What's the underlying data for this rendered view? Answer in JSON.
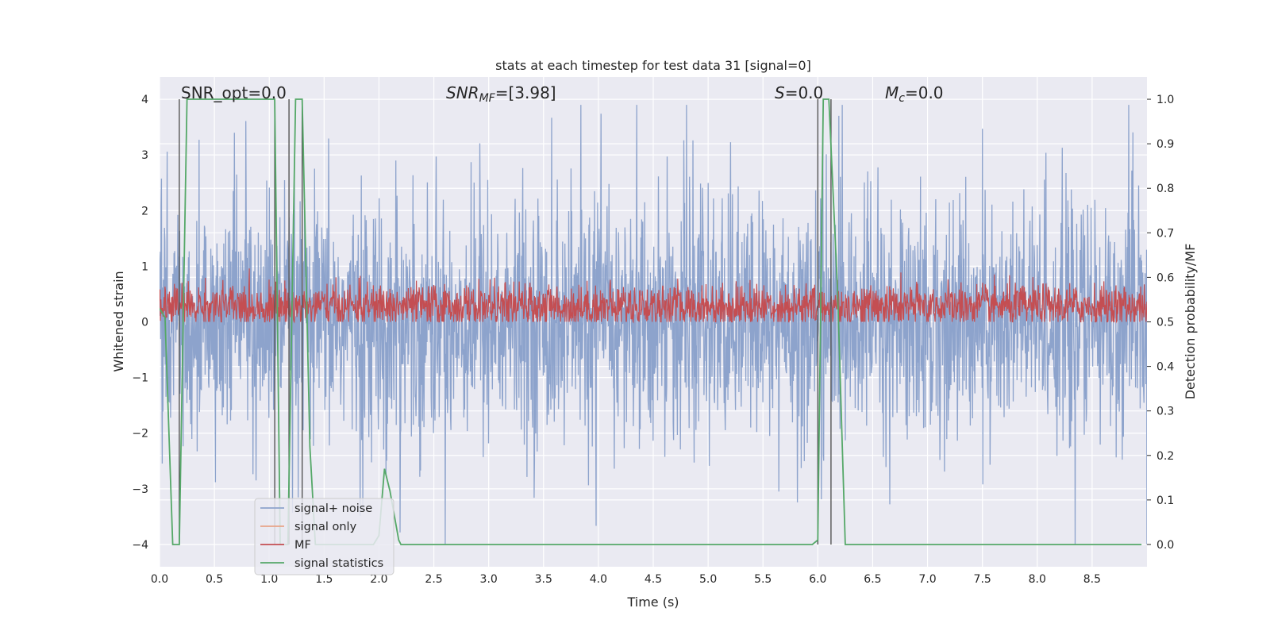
{
  "chart_data": {
    "type": "line",
    "title": "stats at each timestep for test data 31 [signal=0]",
    "xlabel": "Time (s)",
    "ylabel": "Whitened strain",
    "y2label": "Detection probability/MF",
    "xlim": [
      0.0,
      9.0
    ],
    "ylim": [
      -4.4,
      4.4
    ],
    "y2lim": [
      -0.05,
      1.05
    ],
    "x_ticks": [
      "0.0",
      "0.5",
      "1.0",
      "1.5",
      "2.0",
      "2.5",
      "3.0",
      "3.5",
      "4.0",
      "4.5",
      "5.0",
      "5.5",
      "6.0",
      "6.5",
      "7.0",
      "7.5",
      "8.0",
      "8.5"
    ],
    "y_ticks": [
      "4",
      "3",
      "2",
      "1",
      "0",
      "−1",
      "−2",
      "−3",
      "−4"
    ],
    "y2_ticks": [
      "1.0",
      "0.9",
      "0.8",
      "0.7",
      "0.6",
      "0.5",
      "0.4",
      "0.3",
      "0.2",
      "0.1",
      "0.0"
    ],
    "grid": true,
    "legend_position": "lower-left",
    "annotations": [
      {
        "label": "SNR_opt=0.0",
        "italic": false
      },
      {
        "label": "SNR_MF=[3.98]",
        "italic": true
      },
      {
        "label": "S=0.0",
        "italic": true
      },
      {
        "label": "M_c=0.0",
        "italic": true
      }
    ],
    "series": [
      {
        "name": "signal+ noise",
        "color": "#8da3cc",
        "description_values": {
          "typical_range": [
            -1.6,
            1.6
          ],
          "max": 3.9,
          "min": -4.0
        }
      },
      {
        "name": "signal only",
        "color": "#e8a488",
        "values": []
      },
      {
        "name": "MF",
        "color": "#c44e52",
        "description_values": {
          "typical_range": [
            0.0,
            0.8
          ]
        }
      },
      {
        "name": "signal statistics",
        "color": "#55a868",
        "axis": "right",
        "x": [
          0.0,
          0.05,
          0.12,
          0.18,
          0.25,
          0.3,
          1.05,
          1.1,
          1.17,
          1.24,
          1.3,
          1.37,
          1.42,
          1.95,
          2.0,
          2.05,
          2.1,
          2.18,
          2.2,
          5.95,
          6.0,
          6.05,
          6.1,
          6.18,
          6.25,
          8.95
        ],
        "values": [
          0.53,
          0.51,
          0.0,
          0.0,
          1.0,
          1.0,
          1.0,
          0.0,
          0.0,
          1.0,
          1.0,
          0.22,
          0.0,
          0.0,
          0.02,
          0.17,
          0.12,
          0.01,
          0.0,
          0.0,
          0.01,
          1.0,
          1.0,
          0.57,
          0.0,
          0.0
        ]
      }
    ],
    "vertical_lines_x": [
      0.18,
      1.05,
      1.18,
      1.3,
      6.0,
      6.12
    ]
  }
}
